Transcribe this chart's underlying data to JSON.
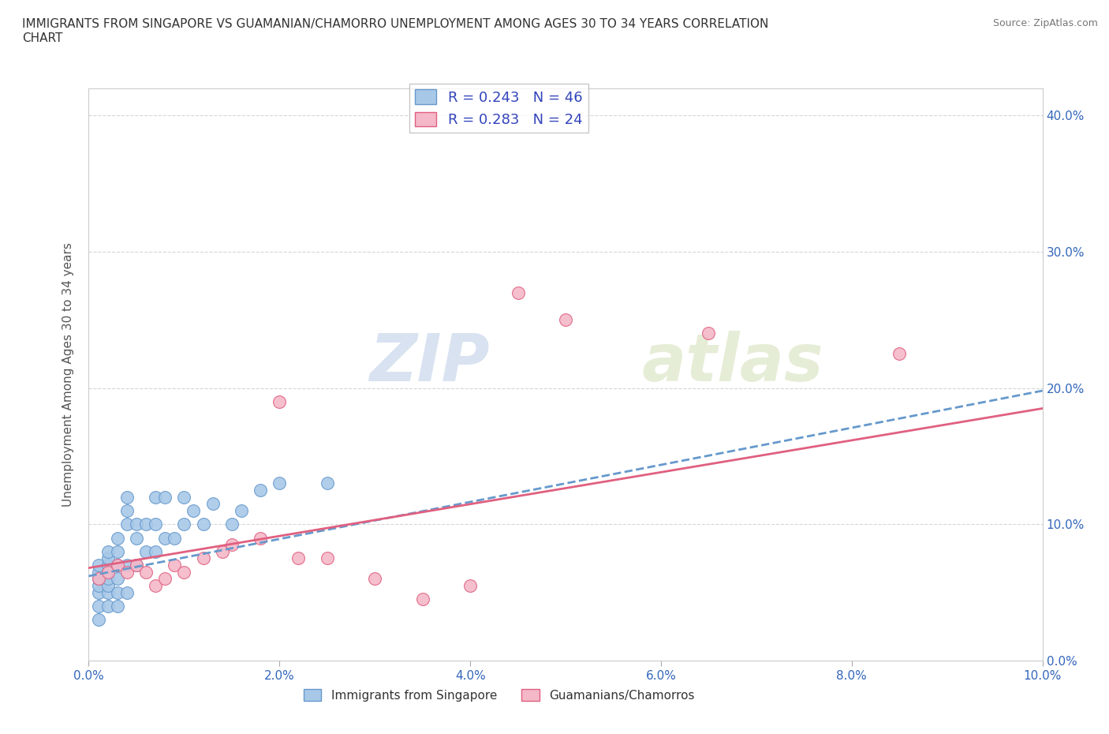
{
  "title": "IMMIGRANTS FROM SINGAPORE VS GUAMANIAN/CHAMORRO UNEMPLOYMENT AMONG AGES 30 TO 34 YEARS CORRELATION\nCHART",
  "source": "Source: ZipAtlas.com",
  "ylabel": "Unemployment Among Ages 30 to 34 years",
  "xlim": [
    0.0,
    0.1
  ],
  "ylim": [
    0.0,
    0.42
  ],
  "r_singapore": 0.243,
  "n_singapore": 46,
  "r_guamanian": 0.283,
  "n_guamanian": 24,
  "color_singapore": "#a8c8e8",
  "color_guamanian": "#f4b8c8",
  "color_singapore_line": "#6699cc",
  "color_guamanian_line": "#e06080",
  "watermark_zip": "ZIP",
  "watermark_atlas": "atlas",
  "singapore_x": [
    0.001,
    0.001,
    0.001,
    0.001,
    0.001,
    0.001,
    0.001,
    0.002,
    0.002,
    0.002,
    0.002,
    0.002,
    0.002,
    0.002,
    0.003,
    0.003,
    0.003,
    0.003,
    0.003,
    0.003,
    0.004,
    0.004,
    0.004,
    0.004,
    0.004,
    0.005,
    0.005,
    0.005,
    0.006,
    0.006,
    0.007,
    0.007,
    0.007,
    0.008,
    0.008,
    0.009,
    0.01,
    0.01,
    0.011,
    0.012,
    0.013,
    0.015,
    0.016,
    0.018,
    0.02,
    0.025
  ],
  "singapore_y": [
    0.03,
    0.04,
    0.05,
    0.055,
    0.06,
    0.065,
    0.07,
    0.04,
    0.05,
    0.055,
    0.06,
    0.07,
    0.075,
    0.08,
    0.04,
    0.05,
    0.06,
    0.07,
    0.08,
    0.09,
    0.05,
    0.07,
    0.1,
    0.11,
    0.12,
    0.07,
    0.09,
    0.1,
    0.08,
    0.1,
    0.08,
    0.1,
    0.12,
    0.09,
    0.12,
    0.09,
    0.1,
    0.12,
    0.11,
    0.1,
    0.115,
    0.1,
    0.11,
    0.125,
    0.13,
    0.13
  ],
  "guamanian_x": [
    0.001,
    0.002,
    0.003,
    0.004,
    0.005,
    0.006,
    0.007,
    0.008,
    0.009,
    0.01,
    0.012,
    0.014,
    0.015,
    0.018,
    0.02,
    0.022,
    0.025,
    0.03,
    0.035,
    0.04,
    0.045,
    0.05,
    0.065,
    0.085
  ],
  "guamanian_y": [
    0.06,
    0.065,
    0.07,
    0.065,
    0.07,
    0.065,
    0.055,
    0.06,
    0.07,
    0.065,
    0.075,
    0.08,
    0.085,
    0.09,
    0.19,
    0.075,
    0.075,
    0.06,
    0.045,
    0.055,
    0.27,
    0.25,
    0.24,
    0.225
  ],
  "sg_line_x": [
    0.0,
    0.1
  ],
  "sg_line_y": [
    0.062,
    0.198
  ],
  "gu_line_x": [
    0.0,
    0.1
  ],
  "gu_line_y": [
    0.068,
    0.185
  ]
}
